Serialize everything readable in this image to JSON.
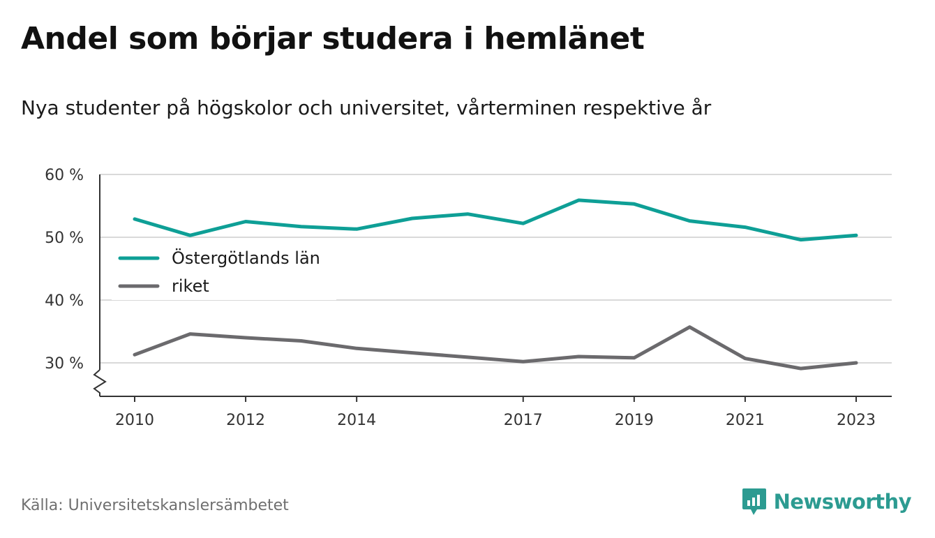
{
  "title": "Andel som börjar studera i hemlänet",
  "subtitle": "Nya studenter på högskolor och universitet, vårterminen respektive år",
  "source": "Källa: Universitetskanslersämbetet",
  "brand": {
    "name": "Newsworthy",
    "icon": "newsworthy-logo-icon"
  },
  "colors": {
    "ostergotland": "#0e9f96",
    "riket": "#6b6a6d",
    "grid": "#d9d9d9",
    "axis": "#333333"
  },
  "chart_data": {
    "type": "line",
    "x": [
      2010,
      2011,
      2012,
      2013,
      2014,
      2015,
      2016,
      2017,
      2018,
      2019,
      2020,
      2021,
      2022,
      2023
    ],
    "x_tick_labels": [
      "2010",
      "2012",
      "2014",
      "2017",
      "2019",
      "2021",
      "2023"
    ],
    "y_tick_labels": [
      "60 %",
      "50 %",
      "40 %",
      "30 %"
    ],
    "y_ticks": [
      60,
      50,
      40,
      30
    ],
    "ylim": [
      25,
      60
    ],
    "y_axis_break": true,
    "grid": true,
    "legend_position": "middle-left",
    "series": [
      {
        "name": "Östergötlands län",
        "color": "#0e9f96",
        "values": [
          52.9,
          50.3,
          52.5,
          51.7,
          51.3,
          53.0,
          53.7,
          52.2,
          55.9,
          55.3,
          52.6,
          51.6,
          49.6,
          50.3
        ]
      },
      {
        "name": "riket",
        "color": "#6b6a6d",
        "values": [
          31.3,
          34.6,
          34.0,
          33.5,
          32.3,
          31.6,
          30.9,
          30.2,
          31.0,
          30.8,
          35.7,
          30.7,
          29.1,
          30.0
        ]
      }
    ]
  }
}
